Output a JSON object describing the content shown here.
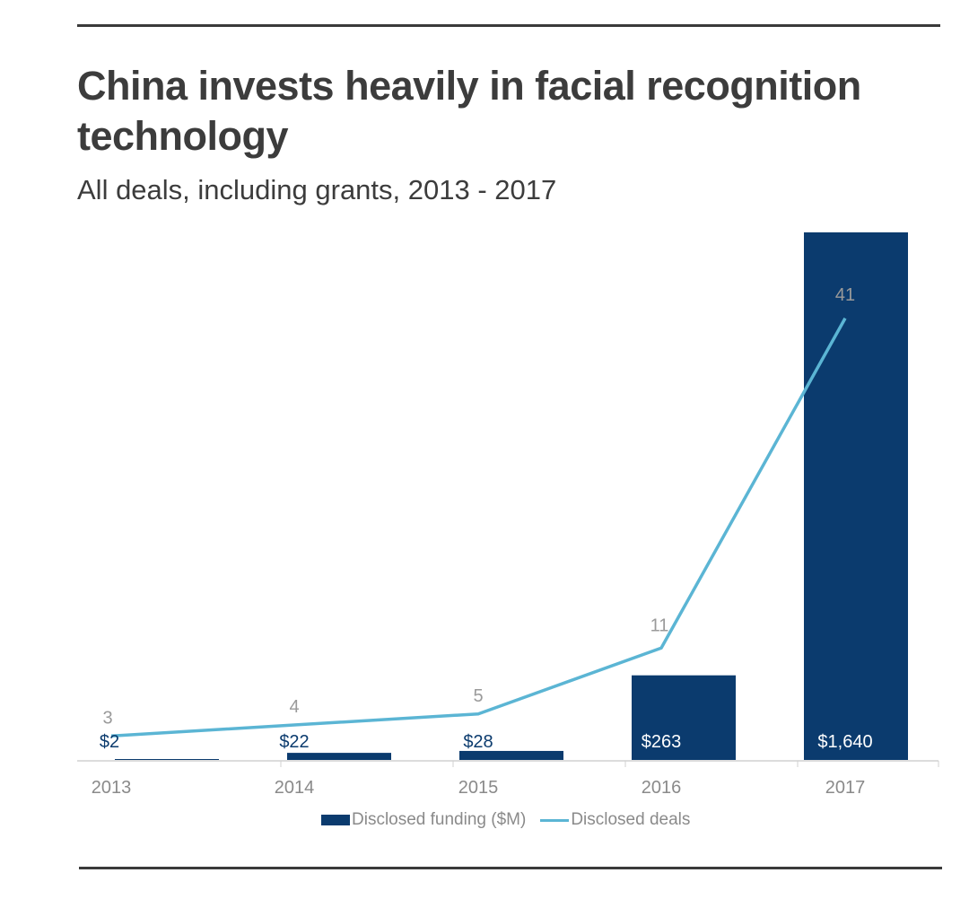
{
  "header": {
    "title": "China invests heavily in facial recognition technology",
    "subtitle": "All deals, including grants, 2013 - 2017"
  },
  "colors": {
    "bar": "#0b3b6e",
    "line": "#5bb5d4",
    "axis": "#d0d0d0",
    "rule": "#3a3a3a",
    "text": "#3c3c3c"
  },
  "legend": {
    "position": "bottom-center",
    "funding_label": "Disclosed funding ($M)",
    "deals_label": "Disclosed deals"
  },
  "chart_data": {
    "type": "bar",
    "title": "China invests heavily in facial recognition technology",
    "subtitle": "All deals, including grants, 2013 - 2017",
    "categories": [
      "2013",
      "2014",
      "2015",
      "2016",
      "2017"
    ],
    "series": [
      {
        "name": "Disclosed funding ($M)",
        "type": "bar",
        "values": [
          2,
          22,
          28,
          263,
          1640
        ],
        "labels": [
          "$2",
          "$22",
          "$28",
          "$263",
          "$1,640"
        ]
      },
      {
        "name": "Disclosed deals",
        "type": "line",
        "values": [
          3,
          4,
          5,
          11,
          41
        ],
        "labels": [
          "3",
          "4",
          "5",
          "11",
          "41"
        ]
      }
    ],
    "ylim_funding": [
      0,
      1640
    ],
    "ylim_deals": [
      0,
      45
    ],
    "grid": false
  }
}
